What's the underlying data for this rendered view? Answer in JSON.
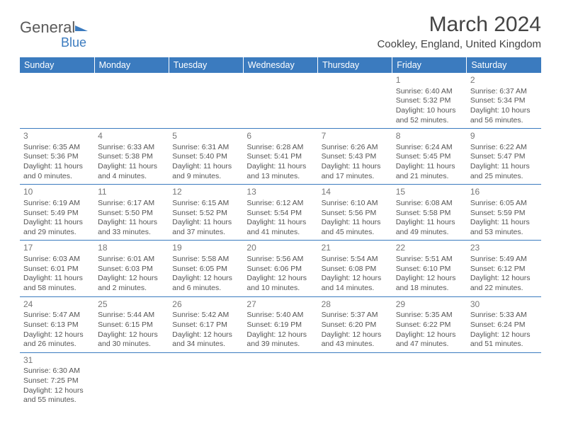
{
  "logo": {
    "text1": "General",
    "text2": "Blue"
  },
  "title": "March 2024",
  "subtitle": "Cookley, England, United Kingdom",
  "headers": [
    "Sunday",
    "Monday",
    "Tuesday",
    "Wednesday",
    "Thursday",
    "Friday",
    "Saturday"
  ],
  "colors": {
    "header_bg": "#3b7bbf",
    "header_fg": "#ffffff",
    "page_bg": "#ffffff",
    "body_text": "#555555",
    "daynum": "#777777",
    "rule": "#3b7bbf"
  },
  "typography": {
    "title_fontsize": 30,
    "subtitle_fontsize": 15,
    "header_fontsize": 12.5,
    "cell_fontsize": 10.5,
    "daynum_fontsize": 12
  },
  "days": [
    {
      "n": "",
      "sr": "",
      "ss": "",
      "d1": "",
      "d2": ""
    },
    {
      "n": "",
      "sr": "",
      "ss": "",
      "d1": "",
      "d2": ""
    },
    {
      "n": "",
      "sr": "",
      "ss": "",
      "d1": "",
      "d2": ""
    },
    {
      "n": "",
      "sr": "",
      "ss": "",
      "d1": "",
      "d2": ""
    },
    {
      "n": "",
      "sr": "",
      "ss": "",
      "d1": "",
      "d2": ""
    },
    {
      "n": "1",
      "sr": "Sunrise: 6:40 AM",
      "ss": "Sunset: 5:32 PM",
      "d1": "Daylight: 10 hours",
      "d2": "and 52 minutes."
    },
    {
      "n": "2",
      "sr": "Sunrise: 6:37 AM",
      "ss": "Sunset: 5:34 PM",
      "d1": "Daylight: 10 hours",
      "d2": "and 56 minutes."
    },
    {
      "n": "3",
      "sr": "Sunrise: 6:35 AM",
      "ss": "Sunset: 5:36 PM",
      "d1": "Daylight: 11 hours",
      "d2": "and 0 minutes."
    },
    {
      "n": "4",
      "sr": "Sunrise: 6:33 AM",
      "ss": "Sunset: 5:38 PM",
      "d1": "Daylight: 11 hours",
      "d2": "and 4 minutes."
    },
    {
      "n": "5",
      "sr": "Sunrise: 6:31 AM",
      "ss": "Sunset: 5:40 PM",
      "d1": "Daylight: 11 hours",
      "d2": "and 9 minutes."
    },
    {
      "n": "6",
      "sr": "Sunrise: 6:28 AM",
      "ss": "Sunset: 5:41 PM",
      "d1": "Daylight: 11 hours",
      "d2": "and 13 minutes."
    },
    {
      "n": "7",
      "sr": "Sunrise: 6:26 AM",
      "ss": "Sunset: 5:43 PM",
      "d1": "Daylight: 11 hours",
      "d2": "and 17 minutes."
    },
    {
      "n": "8",
      "sr": "Sunrise: 6:24 AM",
      "ss": "Sunset: 5:45 PM",
      "d1": "Daylight: 11 hours",
      "d2": "and 21 minutes."
    },
    {
      "n": "9",
      "sr": "Sunrise: 6:22 AM",
      "ss": "Sunset: 5:47 PM",
      "d1": "Daylight: 11 hours",
      "d2": "and 25 minutes."
    },
    {
      "n": "10",
      "sr": "Sunrise: 6:19 AM",
      "ss": "Sunset: 5:49 PM",
      "d1": "Daylight: 11 hours",
      "d2": "and 29 minutes."
    },
    {
      "n": "11",
      "sr": "Sunrise: 6:17 AM",
      "ss": "Sunset: 5:50 PM",
      "d1": "Daylight: 11 hours",
      "d2": "and 33 minutes."
    },
    {
      "n": "12",
      "sr": "Sunrise: 6:15 AM",
      "ss": "Sunset: 5:52 PM",
      "d1": "Daylight: 11 hours",
      "d2": "and 37 minutes."
    },
    {
      "n": "13",
      "sr": "Sunrise: 6:12 AM",
      "ss": "Sunset: 5:54 PM",
      "d1": "Daylight: 11 hours",
      "d2": "and 41 minutes."
    },
    {
      "n": "14",
      "sr": "Sunrise: 6:10 AM",
      "ss": "Sunset: 5:56 PM",
      "d1": "Daylight: 11 hours",
      "d2": "and 45 minutes."
    },
    {
      "n": "15",
      "sr": "Sunrise: 6:08 AM",
      "ss": "Sunset: 5:58 PM",
      "d1": "Daylight: 11 hours",
      "d2": "and 49 minutes."
    },
    {
      "n": "16",
      "sr": "Sunrise: 6:05 AM",
      "ss": "Sunset: 5:59 PM",
      "d1": "Daylight: 11 hours",
      "d2": "and 53 minutes."
    },
    {
      "n": "17",
      "sr": "Sunrise: 6:03 AM",
      "ss": "Sunset: 6:01 PM",
      "d1": "Daylight: 11 hours",
      "d2": "and 58 minutes."
    },
    {
      "n": "18",
      "sr": "Sunrise: 6:01 AM",
      "ss": "Sunset: 6:03 PM",
      "d1": "Daylight: 12 hours",
      "d2": "and 2 minutes."
    },
    {
      "n": "19",
      "sr": "Sunrise: 5:58 AM",
      "ss": "Sunset: 6:05 PM",
      "d1": "Daylight: 12 hours",
      "d2": "and 6 minutes."
    },
    {
      "n": "20",
      "sr": "Sunrise: 5:56 AM",
      "ss": "Sunset: 6:06 PM",
      "d1": "Daylight: 12 hours",
      "d2": "and 10 minutes."
    },
    {
      "n": "21",
      "sr": "Sunrise: 5:54 AM",
      "ss": "Sunset: 6:08 PM",
      "d1": "Daylight: 12 hours",
      "d2": "and 14 minutes."
    },
    {
      "n": "22",
      "sr": "Sunrise: 5:51 AM",
      "ss": "Sunset: 6:10 PM",
      "d1": "Daylight: 12 hours",
      "d2": "and 18 minutes."
    },
    {
      "n": "23",
      "sr": "Sunrise: 5:49 AM",
      "ss": "Sunset: 6:12 PM",
      "d1": "Daylight: 12 hours",
      "d2": "and 22 minutes."
    },
    {
      "n": "24",
      "sr": "Sunrise: 5:47 AM",
      "ss": "Sunset: 6:13 PM",
      "d1": "Daylight: 12 hours",
      "d2": "and 26 minutes."
    },
    {
      "n": "25",
      "sr": "Sunrise: 5:44 AM",
      "ss": "Sunset: 6:15 PM",
      "d1": "Daylight: 12 hours",
      "d2": "and 30 minutes."
    },
    {
      "n": "26",
      "sr": "Sunrise: 5:42 AM",
      "ss": "Sunset: 6:17 PM",
      "d1": "Daylight: 12 hours",
      "d2": "and 34 minutes."
    },
    {
      "n": "27",
      "sr": "Sunrise: 5:40 AM",
      "ss": "Sunset: 6:19 PM",
      "d1": "Daylight: 12 hours",
      "d2": "and 39 minutes."
    },
    {
      "n": "28",
      "sr": "Sunrise: 5:37 AM",
      "ss": "Sunset: 6:20 PM",
      "d1": "Daylight: 12 hours",
      "d2": "and 43 minutes."
    },
    {
      "n": "29",
      "sr": "Sunrise: 5:35 AM",
      "ss": "Sunset: 6:22 PM",
      "d1": "Daylight: 12 hours",
      "d2": "and 47 minutes."
    },
    {
      "n": "30",
      "sr": "Sunrise: 5:33 AM",
      "ss": "Sunset: 6:24 PM",
      "d1": "Daylight: 12 hours",
      "d2": "and 51 minutes."
    },
    {
      "n": "31",
      "sr": "Sunrise: 6:30 AM",
      "ss": "Sunset: 7:25 PM",
      "d1": "Daylight: 12 hours",
      "d2": "and 55 minutes."
    },
    {
      "n": "",
      "sr": "",
      "ss": "",
      "d1": "",
      "d2": ""
    },
    {
      "n": "",
      "sr": "",
      "ss": "",
      "d1": "",
      "d2": ""
    },
    {
      "n": "",
      "sr": "",
      "ss": "",
      "d1": "",
      "d2": ""
    },
    {
      "n": "",
      "sr": "",
      "ss": "",
      "d1": "",
      "d2": ""
    },
    {
      "n": "",
      "sr": "",
      "ss": "",
      "d1": "",
      "d2": ""
    },
    {
      "n": "",
      "sr": "",
      "ss": "",
      "d1": "",
      "d2": ""
    }
  ]
}
